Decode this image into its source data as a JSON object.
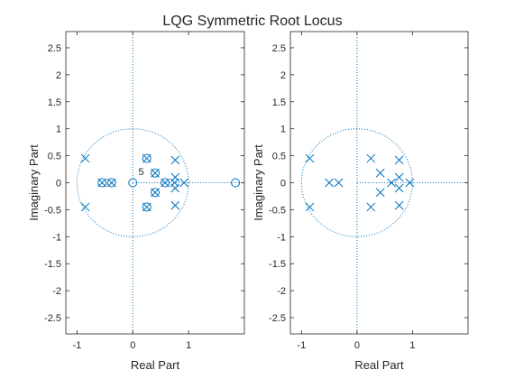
{
  "title": "LQG Symmetric Root Locus",
  "colors": {
    "mark": "#0072BD",
    "axis": "#262626",
    "background": "#ffffff"
  },
  "chart_data": [
    {
      "type": "scatter",
      "xlabel": "Real Part",
      "ylabel": "Imaginary Part",
      "xlim": [
        -1.2,
        2.0
      ],
      "ylim": [
        -2.8,
        2.8
      ],
      "xticks": [
        -1,
        0,
        1
      ],
      "yticks": [
        -2.5,
        -2,
        -1.5,
        -1,
        -0.5,
        0,
        0.5,
        1,
        1.5,
        2,
        2.5
      ],
      "grid": "origin axes + unit circle (dotted)",
      "poles": [
        [
          -0.85,
          0.45
        ],
        [
          -0.85,
          -0.45
        ],
        [
          -0.55,
          0
        ],
        [
          -0.38,
          0
        ],
        [
          0.25,
          0.45
        ],
        [
          0.25,
          -0.45
        ],
        [
          0.4,
          0.18
        ],
        [
          0.4,
          -0.18
        ],
        [
          0.58,
          0
        ],
        [
          0.75,
          0
        ],
        [
          0.92,
          0
        ],
        [
          0.76,
          0.42
        ],
        [
          0.76,
          -0.42
        ],
        [
          0.76,
          0.1
        ],
        [
          0.76,
          -0.1
        ]
      ],
      "zeros": [
        [
          -0.55,
          0
        ],
        [
          -0.38,
          0
        ],
        [
          0.25,
          0.45
        ],
        [
          0.25,
          -0.45
        ],
        [
          0.4,
          0.18
        ],
        [
          0.4,
          -0.18
        ],
        [
          0.58,
          0
        ],
        [
          0,
          0
        ],
        [
          1.84,
          0
        ]
      ],
      "annotations": [
        {
          "text": "5",
          "x": 0.1,
          "y": 0.14
        }
      ]
    },
    {
      "type": "scatter",
      "xlabel": "Real Part",
      "ylabel": "Imaginary Part",
      "xlim": [
        -1.2,
        2.0
      ],
      "ylim": [
        -2.8,
        2.8
      ],
      "xticks": [
        -1,
        0,
        1
      ],
      "yticks": [
        -2.5,
        -2,
        -1.5,
        -1,
        -0.5,
        0,
        0.5,
        1,
        1.5,
        2,
        2.5
      ],
      "grid": "origin axes + unit circle (dotted)",
      "poles": [
        [
          -0.85,
          0.45
        ],
        [
          -0.85,
          -0.45
        ],
        [
          -0.5,
          0
        ],
        [
          -0.33,
          0
        ],
        [
          0.25,
          0.45
        ],
        [
          0.25,
          -0.45
        ],
        [
          0.42,
          0.18
        ],
        [
          0.42,
          -0.18
        ],
        [
          0.62,
          0
        ],
        [
          0.76,
          0.1
        ],
        [
          0.76,
          -0.1
        ],
        [
          0.76,
          0.42
        ],
        [
          0.76,
          -0.42
        ],
        [
          0.95,
          0
        ]
      ],
      "zeros": [],
      "annotations": []
    }
  ]
}
